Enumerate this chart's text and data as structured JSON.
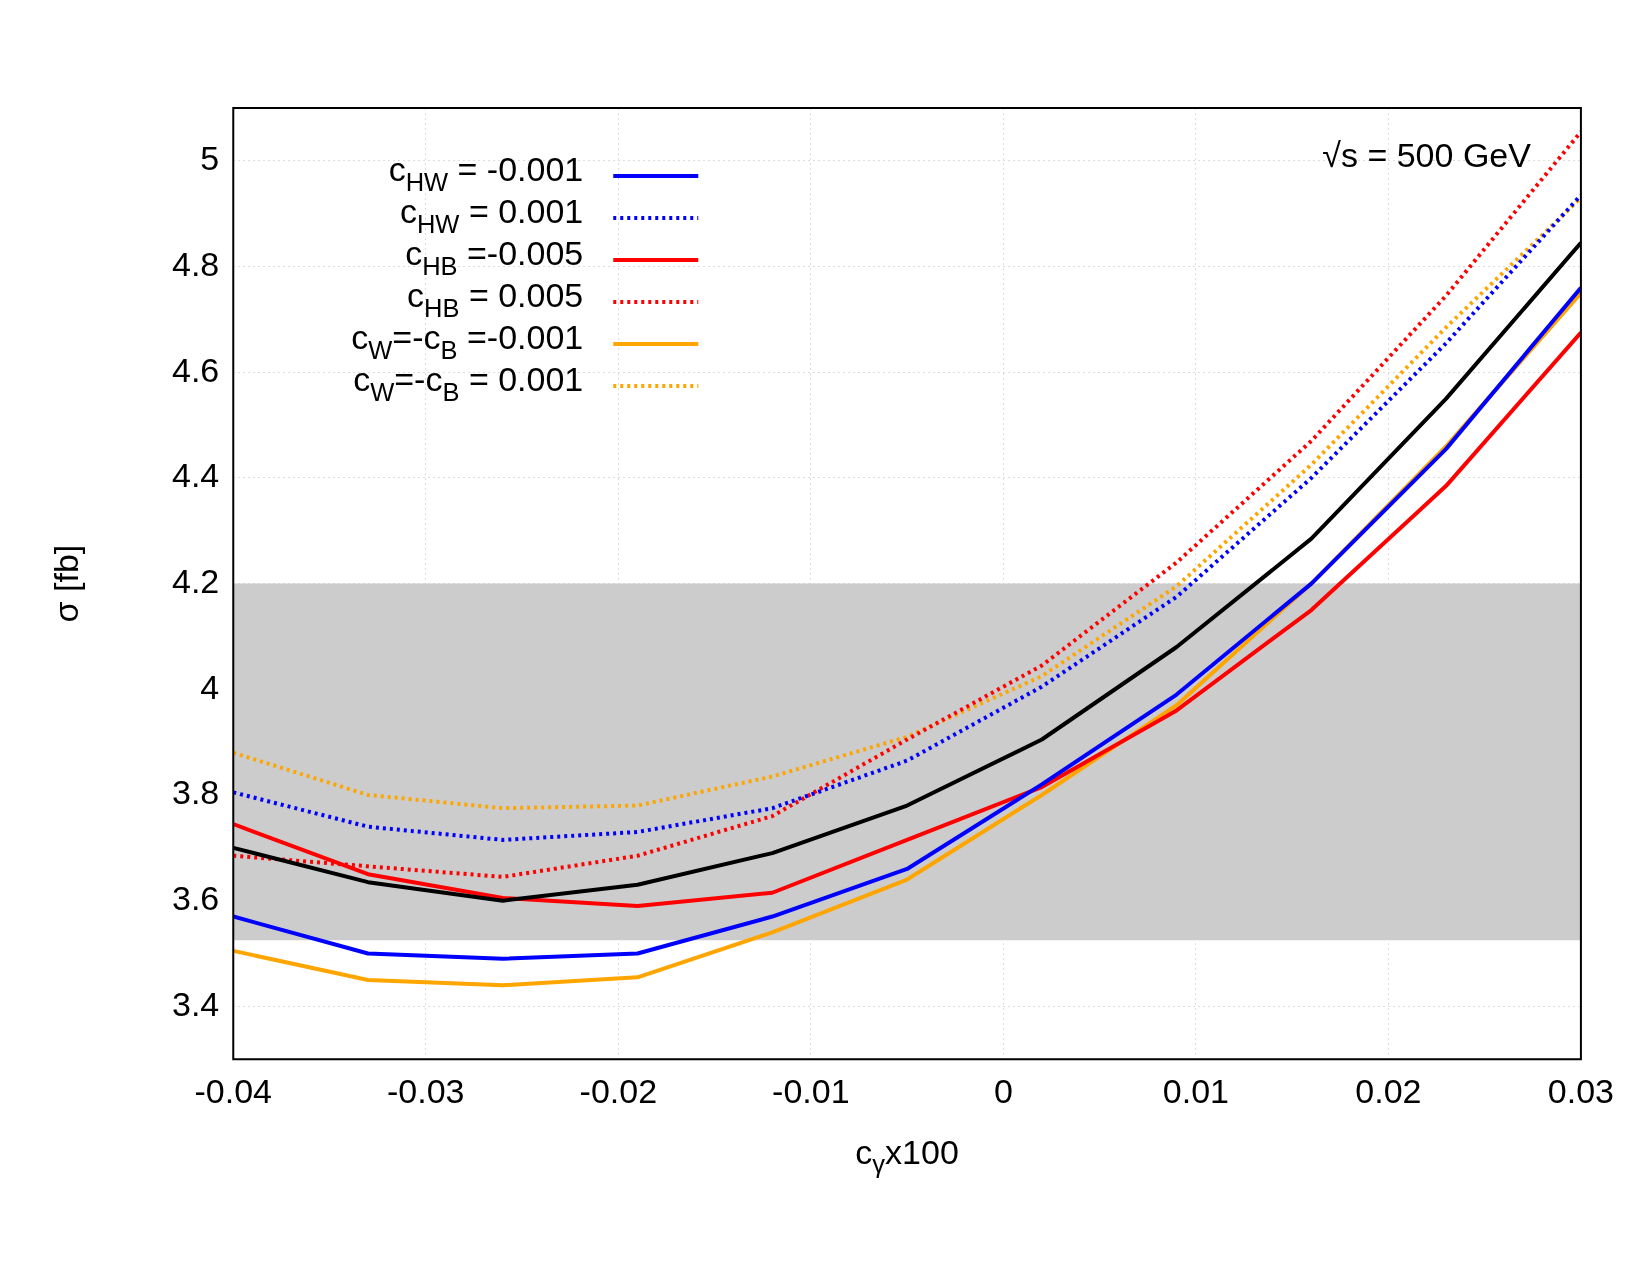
{
  "chart_data": {
    "type": "line",
    "xlabel": "c$_{γ}$x100",
    "ylabel": "σ [fb]",
    "annotations": [
      "√s = 500 GeV"
    ],
    "x": [
      -0.04,
      -0.033,
      -0.026,
      -0.019,
      -0.012,
      -0.005,
      0.002,
      0.009,
      0.016,
      0.023,
      0.03
    ],
    "xlim": [
      -0.04,
      0.03
    ],
    "xticks": [
      -0.04,
      -0.03,
      -0.02,
      -0.01,
      0,
      0.01,
      0.02,
      0.03
    ],
    "ylim": [
      3.3,
      5.1
    ],
    "yticks": [
      3.4,
      3.6,
      3.8,
      4,
      4.2,
      4.4,
      4.6,
      4.8,
      5
    ],
    "grid": true,
    "legend": "top left",
    "marker": "none",
    "bands": [
      {
        "axis": "y",
        "from": 3.525,
        "to": 4.2,
        "color": "#cccccc"
      }
    ],
    "series": [
      {
        "name": "c$_{HW}$ = -0.001",
        "color": "#0000ff",
        "line_style": "solid",
        "values": [
          3.57,
          3.5,
          3.49,
          3.5,
          3.57,
          3.66,
          3.82,
          3.99,
          4.2,
          4.455,
          4.76
        ]
      },
      {
        "name": "c$_{HW}$ = 0.001",
        "color": "#0000ff",
        "line_style": "dotted",
        "values": [
          3.805,
          3.74,
          3.715,
          3.73,
          3.775,
          3.865,
          4.005,
          4.175,
          4.4,
          4.655,
          4.935
        ]
      },
      {
        "name": "c$_{HB}$ =-0.005",
        "color": "#ff0000",
        "line_style": "solid",
        "values": [
          3.745,
          3.65,
          3.605,
          3.59,
          3.615,
          3.715,
          3.815,
          3.96,
          4.15,
          4.385,
          4.675
        ]
      },
      {
        "name": "c$_{HB}$ = 0.005",
        "color": "#ff0000",
        "line_style": "dotted",
        "values": [
          3.685,
          3.665,
          3.645,
          3.685,
          3.76,
          3.905,
          4.045,
          4.24,
          4.47,
          4.745,
          5.055
        ]
      },
      {
        "name": "c$_{W}$=-c$_{B}$ =-0.001",
        "color": "#ffa500",
        "line_style": "solid",
        "values": [
          3.505,
          3.45,
          3.44,
          3.455,
          3.54,
          3.64,
          3.8,
          3.97,
          4.2,
          4.46,
          4.75
        ]
      },
      {
        "name": "c$_{W}$=-c$_{B}$ = 0.001",
        "color": "#ffa500",
        "line_style": "dotted",
        "values": [
          3.88,
          3.8,
          3.775,
          3.78,
          3.835,
          3.91,
          4.025,
          4.195,
          4.425,
          4.685,
          4.93
        ]
      },
      {
        "color": "#000000",
        "line_style": "solid",
        "values": [
          3.7,
          3.635,
          3.6,
          3.63,
          3.69,
          3.78,
          3.905,
          4.08,
          4.285,
          4.55,
          4.845
        ]
      }
    ]
  }
}
